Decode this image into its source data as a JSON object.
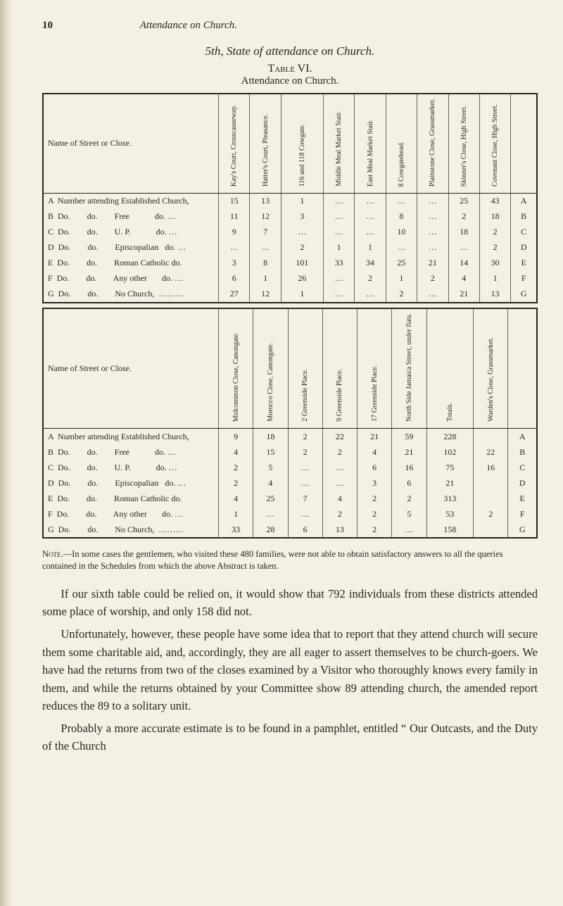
{
  "page_number": "10",
  "running_title": "Attendance on Church.",
  "subheading": "5th, State of attendance on Church.",
  "table_caption": "Table VI.",
  "table_subcaption": "Attendance on Church.",
  "table1": {
    "name_header": "Name of Street or Close.",
    "col_headers": [
      "Kay's Court, Crosscauseway.",
      "Hatter's Court, Pleasance.",
      "116 and 118 Cowgate.",
      "Middle Meal Market Stair.",
      "East Meal Market Stair.",
      "8 Cowgatehead.",
      "Plainstone Close, Grassmarket.",
      "Skinner's Close, High Street.",
      "Covenant Close, High Street.",
      ""
    ],
    "rows": [
      {
        "l": "A",
        "name": "Number attending Established Church,",
        "v": [
          "15",
          "13",
          "1",
          "…",
          "…",
          "…",
          "…",
          "25",
          "43",
          "A"
        ]
      },
      {
        "l": "B",
        "name": "Do.        do.        Free            do. …",
        "v": [
          "11",
          "12",
          "3",
          "…",
          "…",
          "8",
          "…",
          "2",
          "18",
          "B"
        ]
      },
      {
        "l": "C",
        "name": "Do.        do.        U. P.            do. …",
        "v": [
          "9",
          "7",
          "…",
          "…",
          "…",
          "10",
          "…",
          "18",
          "2",
          "C"
        ]
      },
      {
        "l": "D",
        "name": "Do.        do.        Episcopalian   do. …",
        "v": [
          "…",
          "…",
          "2",
          "1",
          "1",
          "…",
          "…",
          "…",
          "2",
          "D"
        ]
      },
      {
        "l": "E",
        "name": "Do.        do.        Roman Catholic do.",
        "v": [
          "3",
          "8",
          "101",
          "33",
          "34",
          "25",
          "21",
          "14",
          "30",
          "E"
        ]
      },
      {
        "l": "F",
        "name": "Do.        do.        Any other       do. …",
        "v": [
          "6",
          "1",
          "26",
          "…",
          "2",
          "1",
          "2",
          "4",
          "1",
          "F"
        ]
      },
      {
        "l": "G",
        "name": "Do.        do.        No Church,  ………",
        "v": [
          "27",
          "12",
          "1",
          "…",
          "…",
          "2",
          "…",
          "21",
          "13",
          "G"
        ]
      }
    ]
  },
  "table2": {
    "name_header": "Name of Street or Close.",
    "col_headers": [
      "Midcommon Close, Canongate.",
      "Morocco Close, Canongate.",
      "2 Greenside Place.",
      "9 Greenside Place.",
      "17 Greenside Place.",
      "North Side Jamaica Street, under flats.",
      "Totals.",
      "Warden's Close, Grassmarket.",
      ""
    ],
    "rows": [
      {
        "l": "A",
        "name": "Number attending Established Church,",
        "v": [
          "9",
          "18",
          "2",
          "22",
          "21",
          "59",
          "228",
          "",
          "A"
        ]
      },
      {
        "l": "B",
        "name": "Do.        do.        Free            do. …",
        "v": [
          "4",
          "15",
          "2",
          "2",
          "4",
          "21",
          "102",
          "22",
          "B"
        ]
      },
      {
        "l": "C",
        "name": "Do.        do.        U. P.            do. …",
        "v": [
          "2",
          "5",
          "…",
          "…",
          "6",
          "16",
          "75",
          "16",
          "C"
        ]
      },
      {
        "l": "D",
        "name": "Do.        do.        Episcopalian   do. …",
        "v": [
          "2",
          "4",
          "…",
          "…",
          "3",
          "6",
          "21",
          "",
          "D"
        ]
      },
      {
        "l": "E",
        "name": "Do.        do.        Roman Catholic do.",
        "v": [
          "4",
          "25",
          "7",
          "4",
          "2",
          "2",
          "313",
          "",
          "E"
        ]
      },
      {
        "l": "F",
        "name": "Do.        do.        Any other       do. …",
        "v": [
          "1",
          "…",
          "…",
          "2",
          "2",
          "5",
          "53",
          "2",
          "F"
        ]
      },
      {
        "l": "G",
        "name": "Do.        do.        No Church,  ………",
        "v": [
          "33",
          "28",
          "6",
          "13",
          "2",
          "…",
          "158",
          "",
          "G"
        ]
      }
    ]
  },
  "note_text": "Note.—In some cases the gentlemen, who visited these 480 families, were not able to obtain satisfactory answers to all the queries contained in the Schedules from which the above Abstract is taken.",
  "para1": "If our sixth table could be relied on, it would show that 792 individuals from these districts attended some place of worship, and only 158 did not.",
  "para2": "Unfortunately, however, these people have some idea that to report that they attend church will secure them some charitable aid, and, accordingly, they are all eager to assert themselves to be church-goers. We have had the returns from two of the closes examined by a Visitor who thoroughly knows every family in them, and while the returns obtained by your Committee show 89 attending church, the amended report reduces the 89 to a solitary unit.",
  "para3": "Probably a more accurate estimate is to be found in a pamphlet, entitled “ Our Outcasts, and the Duty of the Church"
}
